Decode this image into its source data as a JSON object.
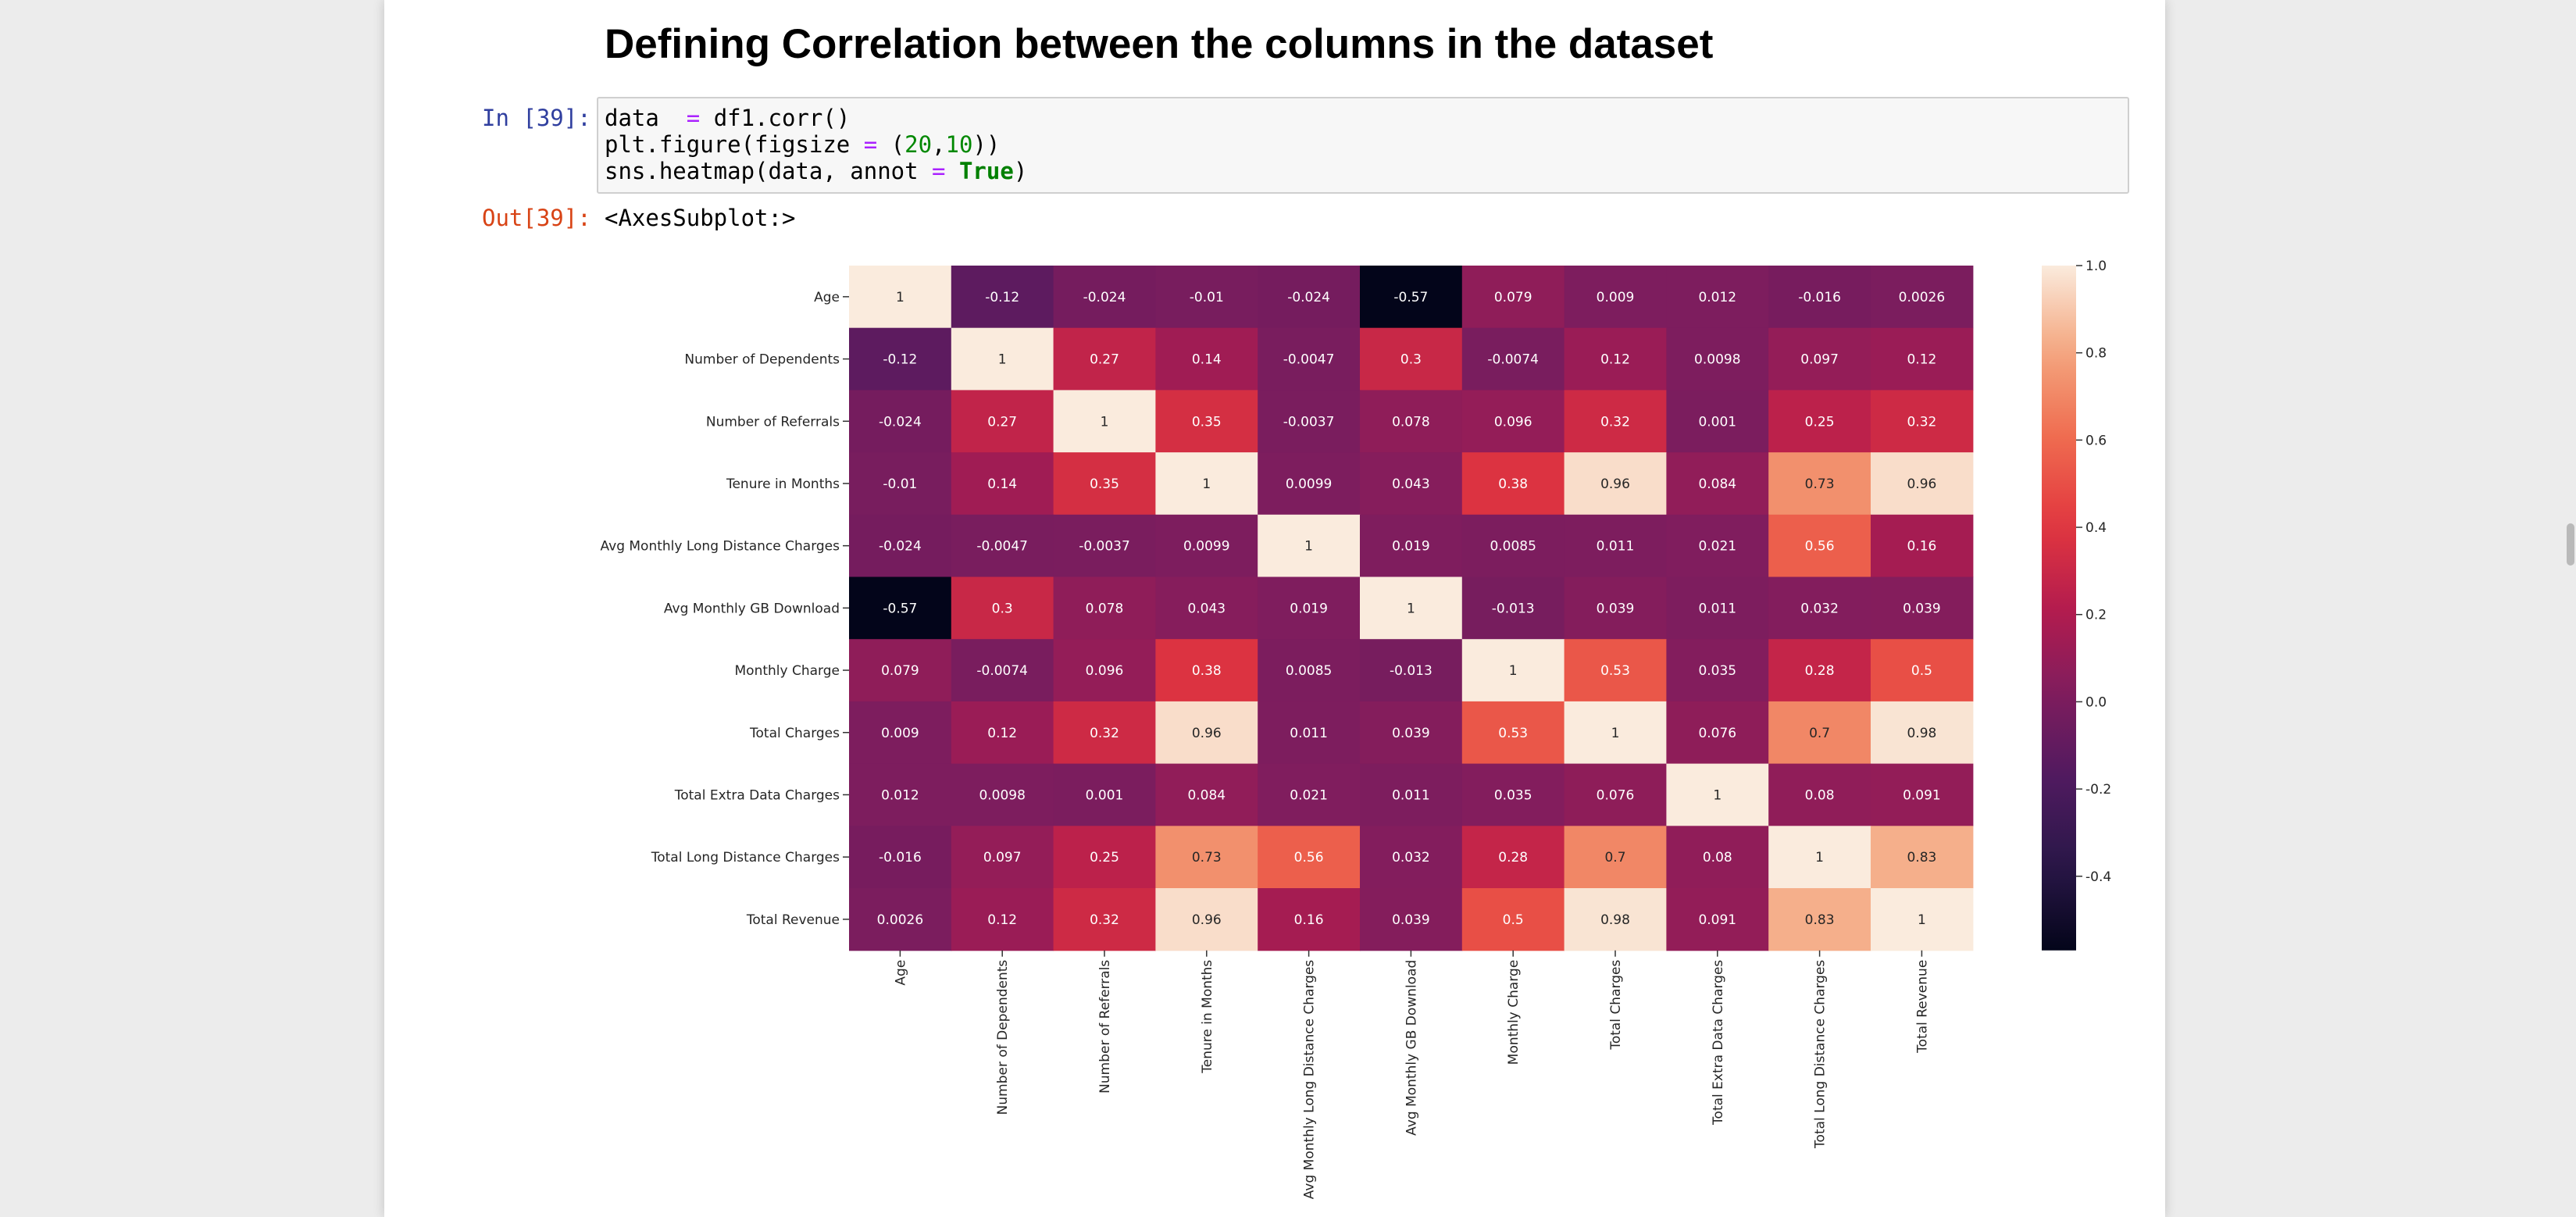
{
  "heading": "Defining Correlation between the columns in the dataset",
  "cell": {
    "in_prompt": "In [39]:",
    "out_prompt": "Out[39]:",
    "code_lines": [
      [
        {
          "t": "data  ",
          "c": ""
        },
        {
          "t": "=",
          "c": "op"
        },
        {
          "t": " df1.corr()",
          "c": ""
        }
      ],
      [
        {
          "t": "plt.figure(figsize ",
          "c": ""
        },
        {
          "t": "=",
          "c": "op"
        },
        {
          "t": " (",
          "c": ""
        },
        {
          "t": "20",
          "c": "num"
        },
        {
          "t": ",",
          "c": ""
        },
        {
          "t": "10",
          "c": "num"
        },
        {
          "t": "))",
          "c": ""
        }
      ],
      [
        {
          "t": "sns.heatmap(data, annot ",
          "c": ""
        },
        {
          "t": "=",
          "c": "op"
        },
        {
          "t": " ",
          "c": ""
        },
        {
          "t": "True",
          "c": "kw"
        },
        {
          "t": ")",
          "c": ""
        }
      ]
    ],
    "output": "<AxesSubplot:>"
  },
  "chart_data": {
    "type": "heatmap",
    "rows": [
      "Age",
      "Number of Dependents",
      "Number of Referrals",
      "Tenure in Months",
      "Avg Monthly Long Distance Charges",
      "Avg Monthly GB Download",
      "Monthly Charge",
      "Total Charges",
      "Total Extra Data Charges",
      "Total Long Distance Charges",
      "Total Revenue"
    ],
    "columns": [
      "Age",
      "Number of Dependents",
      "Number of Referrals",
      "Tenure in Months",
      "Avg Monthly Long Distance Charges",
      "Avg Monthly GB Download",
      "Monthly Charge",
      "Total Charges",
      "Total Extra Data Charges",
      "Total Long Distance Charges",
      "Total Revenue"
    ],
    "values": [
      [
        1,
        -0.12,
        -0.024,
        -0.01,
        -0.024,
        -0.57,
        0.079,
        0.009,
        0.012,
        -0.016,
        0.0026
      ],
      [
        -0.12,
        1,
        0.27,
        0.14,
        -0.0047,
        0.3,
        -0.0074,
        0.12,
        0.0098,
        0.097,
        0.12
      ],
      [
        -0.024,
        0.27,
        1,
        0.35,
        -0.0037,
        0.078,
        0.096,
        0.32,
        0.001,
        0.25,
        0.32
      ],
      [
        -0.01,
        0.14,
        0.35,
        1,
        0.0099,
        0.043,
        0.38,
        0.96,
        0.084,
        0.73,
        0.96
      ],
      [
        -0.024,
        -0.0047,
        -0.0037,
        0.0099,
        1,
        0.019,
        0.0085,
        0.011,
        0.021,
        0.56,
        0.16
      ],
      [
        -0.57,
        0.3,
        0.078,
        0.043,
        0.019,
        1,
        -0.013,
        0.039,
        0.011,
        0.032,
        0.039
      ],
      [
        0.079,
        -0.0074,
        0.096,
        0.38,
        0.0085,
        -0.013,
        1,
        0.53,
        0.035,
        0.28,
        0.5
      ],
      [
        0.009,
        0.12,
        0.32,
        0.96,
        0.011,
        0.039,
        0.53,
        1,
        0.076,
        0.7,
        0.98
      ],
      [
        0.012,
        0.0098,
        0.001,
        0.084,
        0.021,
        0.011,
        0.035,
        0.076,
        1,
        0.08,
        0.091
      ],
      [
        -0.016,
        0.097,
        0.25,
        0.73,
        0.56,
        0.032,
        0.28,
        0.7,
        0.08,
        1,
        0.83
      ],
      [
        0.0026,
        0.12,
        0.32,
        0.96,
        0.16,
        0.039,
        0.5,
        0.98,
        0.091,
        0.83,
        1
      ]
    ],
    "colormap": "rocket",
    "vmin": -0.57,
    "vmax": 1,
    "colorbar_ticks": [
      "1.0",
      "0.8",
      "0.6",
      "0.4",
      "0.2",
      "0.0",
      "-0.2",
      "-0.4"
    ],
    "colorbar_tick_values": [
      1.0,
      0.8,
      0.6,
      0.4,
      0.2,
      0.0,
      -0.2,
      -0.4
    ],
    "annot": true
  }
}
